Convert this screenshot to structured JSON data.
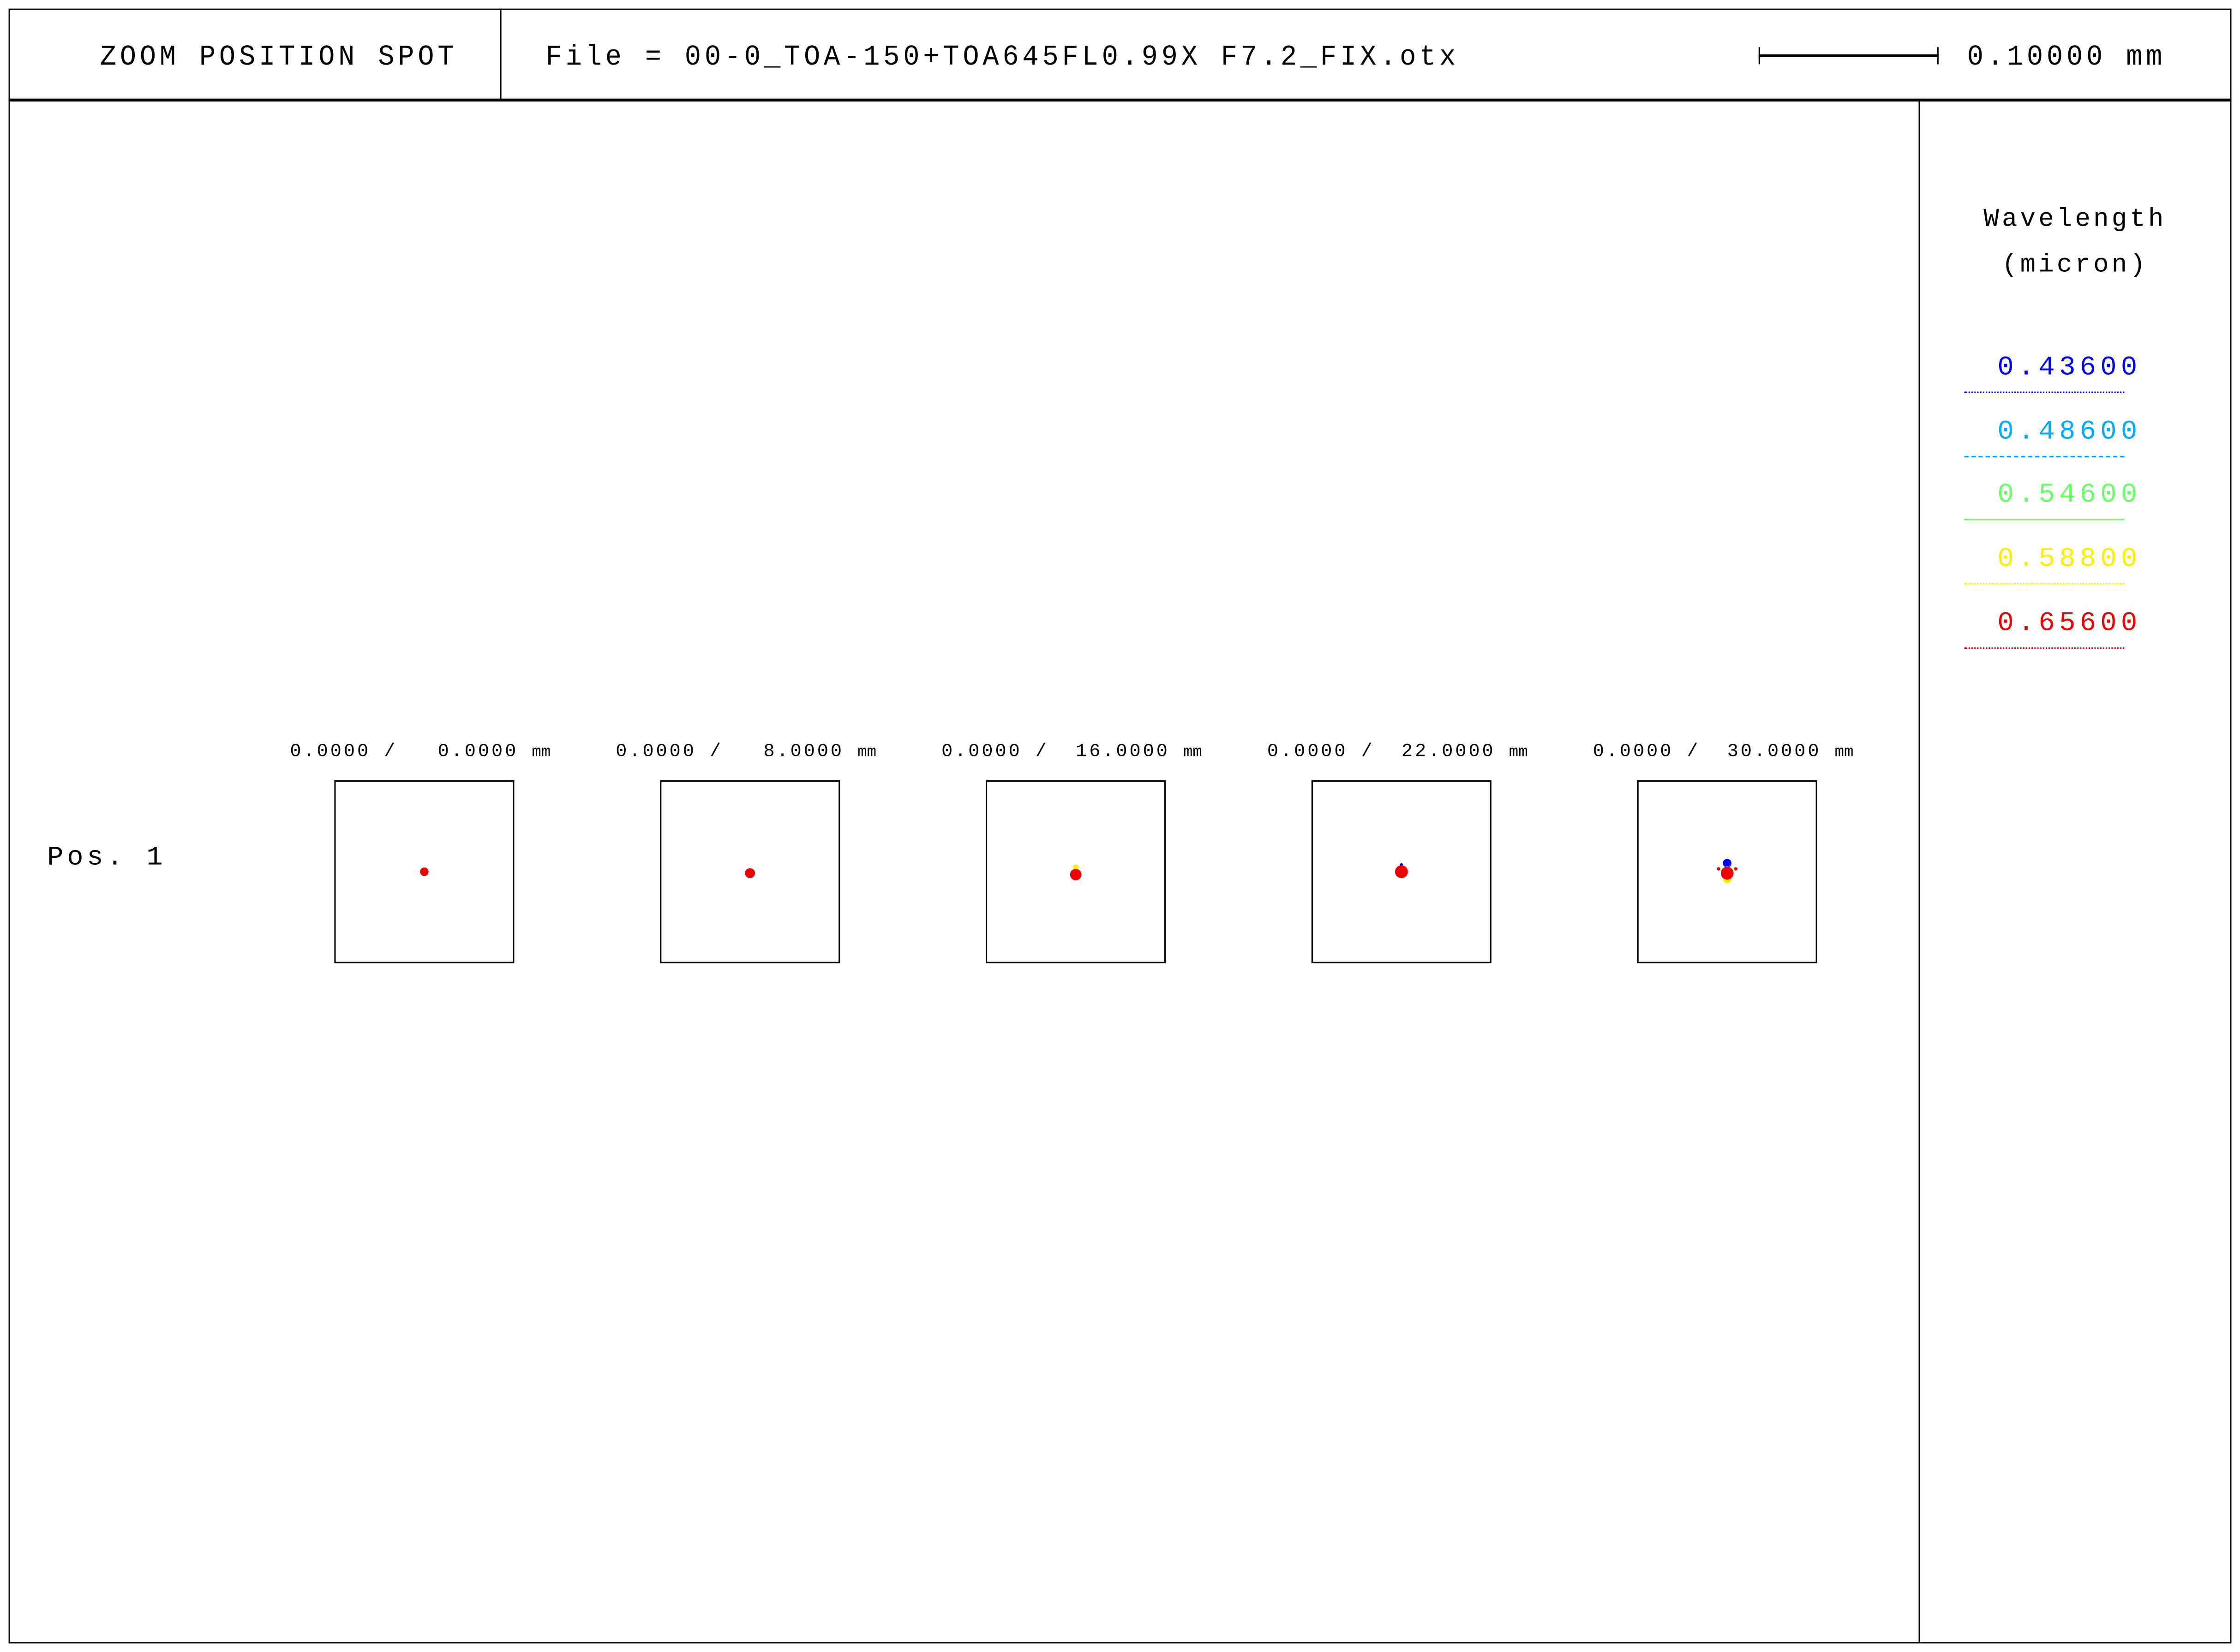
{
  "header": {
    "title": "ZOOM POSITION SPOT",
    "file": "File = 00-0_TOA-150+TOA645FL0.99X F7.2_FIX.otx",
    "scale_label": "0.10000 mm"
  },
  "legend": {
    "title_line1": "Wavelength",
    "title_line2": "(micron)",
    "items": [
      {
        "label": "0.43600",
        "color": "#0000ff",
        "line": "dotted"
      },
      {
        "label": "0.48600",
        "color": "#00aaff",
        "line": "dashed"
      },
      {
        "label": "0.54600",
        "color": "#66ff66",
        "line": "solid"
      },
      {
        "label": "0.58800",
        "color": "#ffee00",
        "line": "dotted"
      },
      {
        "label": "0.65600",
        "color": "#ee0000",
        "line": "dotted"
      }
    ]
  },
  "rows": [
    {
      "label": "Pos. 1"
    }
  ],
  "fields": [
    {
      "label": "0.0000 /   0.0000",
      "unit": "mm"
    },
    {
      "label": "0.0000 /   8.0000",
      "unit": "mm"
    },
    {
      "label": "0.0000 /  16.0000",
      "unit": "mm"
    },
    {
      "label": "0.0000 /  22.0000",
      "unit": "mm"
    },
    {
      "label": "0.0000 /  30.0000",
      "unit": "mm"
    }
  ]
}
